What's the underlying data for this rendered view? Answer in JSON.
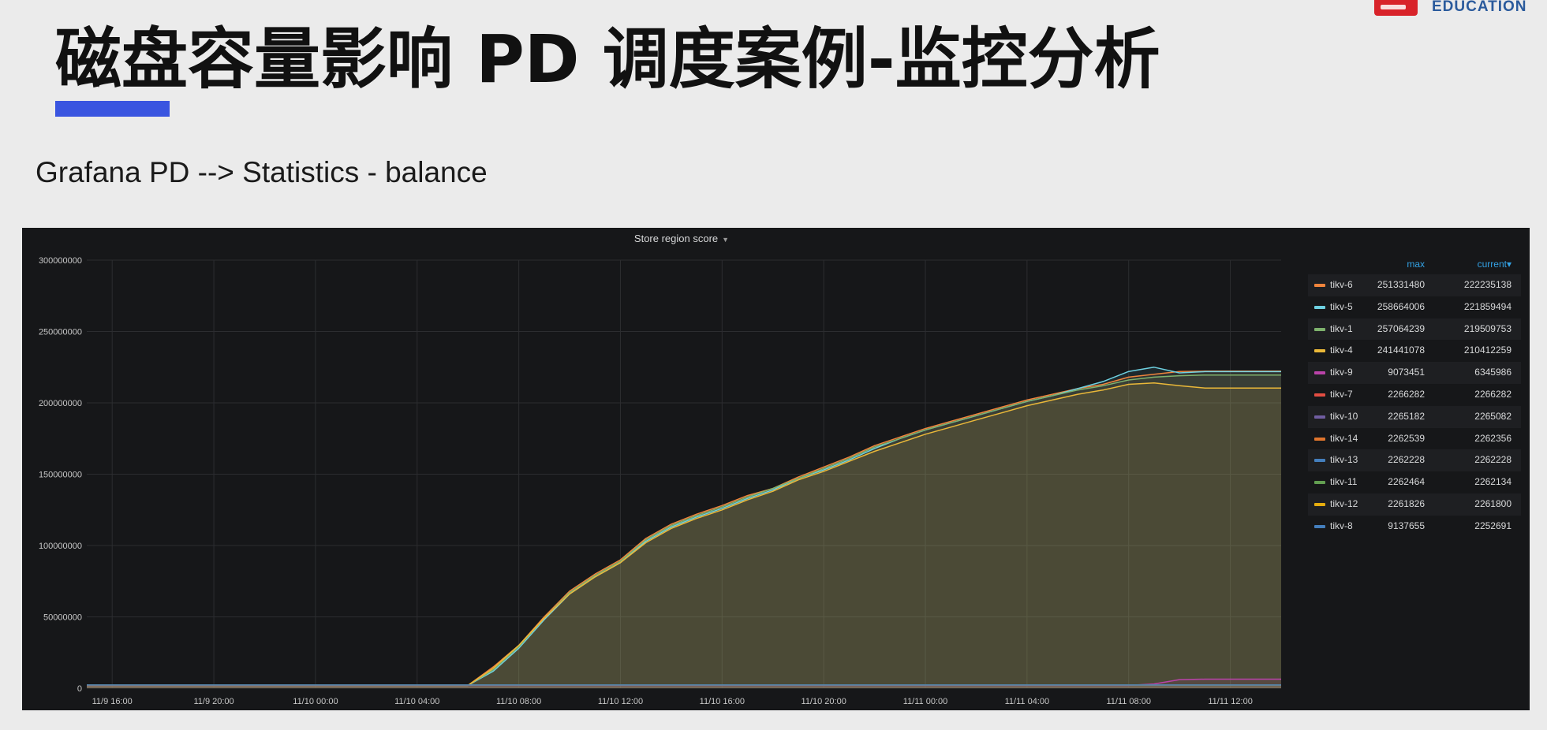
{
  "header": {
    "logo_text": "EDUCATION",
    "title": "磁盘容量影响 PD 调度案例-监控分析",
    "subtitle": "Grafana PD --> Statistics - balance"
  },
  "panel": {
    "title": "Store region score",
    "max_label": "max",
    "current_label": "current▾"
  },
  "chart_data": {
    "type": "line",
    "title": "Store region score",
    "ylim": [
      0,
      300000000
    ],
    "y_ticks": [
      0,
      50000000,
      100000000,
      150000000,
      200000000,
      250000000,
      300000000
    ],
    "y_tick_labels": [
      "0",
      "50000000",
      "100000000",
      "150000000",
      "200000000",
      "250000000",
      "300000000"
    ],
    "x_ticks": [
      "11/9 16:00",
      "11/9 20:00",
      "11/10 00:00",
      "11/10 04:00",
      "11/10 08:00",
      "11/10 12:00",
      "11/10 16:00",
      "11/10 20:00",
      "11/11 00:00",
      "11/11 04:00",
      "11/11 08:00",
      "11/11 12:00"
    ],
    "x_range": [
      "11/9 15:00",
      "11/11 14:00"
    ],
    "grid": true,
    "legend_placement": "right",
    "x": [
      "11/9 15:00",
      "11/10 06:00",
      "11/10 07:00",
      "11/10 08:00",
      "11/10 09:00",
      "11/10 10:00",
      "11/10 11:00",
      "11/10 12:00",
      "11/10 13:00",
      "11/10 14:00",
      "11/10 15:00",
      "11/10 16:00",
      "11/10 17:00",
      "11/10 18:00",
      "11/10 19:00",
      "11/10 20:00",
      "11/10 21:00",
      "11/10 22:00",
      "11/10 23:00",
      "11/11 00:00",
      "11/11 01:00",
      "11/11 02:00",
      "11/11 03:00",
      "11/11 04:00",
      "11/11 05:00",
      "11/11 06:00",
      "11/11 07:00",
      "11/11 08:00",
      "11/11 09:00",
      "11/11 10:00",
      "11/11 11:00",
      "11/11 12:00",
      "11/11 14:00"
    ],
    "series": [
      {
        "name": "tikv-6",
        "color": "#ef843c",
        "max": "251331480",
        "current": "222235138",
        "values": [
          2000000,
          2000000,
          15000000,
          30000000,
          50000000,
          68000000,
          80000000,
          90000000,
          105000000,
          115000000,
          122000000,
          128000000,
          135000000,
          140000000,
          148000000,
          155000000,
          162000000,
          170000000,
          176000000,
          182000000,
          187000000,
          192000000,
          197000000,
          202000000,
          206000000,
          210000000,
          213000000,
          218000000,
          220000000,
          222000000,
          222235138,
          222235138,
          222235138
        ]
      },
      {
        "name": "tikv-5",
        "color": "#6ed0e0",
        "max": "258664006",
        "current": "221859494",
        "values": [
          2000000,
          2000000,
          12000000,
          28000000,
          48000000,
          66000000,
          78000000,
          88000000,
          103000000,
          113000000,
          120000000,
          126000000,
          133000000,
          139000000,
          147000000,
          153000000,
          160000000,
          168000000,
          175000000,
          181000000,
          186000000,
          191000000,
          196000000,
          201000000,
          205000000,
          210000000,
          215000000,
          222000000,
          225000000,
          221000000,
          221859494,
          221859494,
          221859494
        ]
      },
      {
        "name": "tikv-1",
        "color": "#7eb26d",
        "max": "257064239",
        "current": "219509753",
        "values": [
          2000000,
          2000000,
          13000000,
          29000000,
          49000000,
          67000000,
          79000000,
          89000000,
          104000000,
          114000000,
          121000000,
          127000000,
          134000000,
          140000000,
          147000000,
          154000000,
          161000000,
          169000000,
          175000000,
          181000000,
          186000000,
          191000000,
          196000000,
          201000000,
          205000000,
          209000000,
          212000000,
          216000000,
          218000000,
          219000000,
          219509753,
          219509753,
          219509753
        ]
      },
      {
        "name": "tikv-4",
        "color": "#eab839",
        "max": "241441078",
        "current": "210412259",
        "values": [
          2000000,
          2000000,
          14000000,
          30000000,
          49000000,
          66000000,
          78000000,
          88000000,
          102000000,
          112000000,
          119000000,
          125000000,
          132000000,
          138000000,
          146000000,
          152000000,
          159000000,
          166000000,
          172000000,
          178000000,
          183000000,
          188000000,
          193000000,
          198000000,
          202000000,
          206000000,
          209000000,
          213000000,
          214000000,
          212000000,
          210412259,
          210412259,
          210412259
        ]
      },
      {
        "name": "tikv-9",
        "color": "#ba43a9",
        "max": "9073451",
        "current": "6345986",
        "values": [
          2000000,
          2000000,
          2000000,
          2000000,
          2000000,
          2000000,
          2000000,
          2000000,
          2000000,
          2000000,
          2000000,
          2000000,
          2000000,
          2000000,
          2000000,
          2000000,
          2000000,
          2000000,
          2000000,
          2000000,
          2000000,
          2000000,
          2000000,
          2000000,
          2000000,
          2000000,
          2000000,
          2000000,
          3000000,
          6000000,
          6345986,
          6345986,
          6345986
        ]
      },
      {
        "name": "tikv-7",
        "color": "#e24d42",
        "max": "2266282",
        "current": "2266282",
        "values": [
          2266282,
          2266282,
          2266282,
          2266282,
          2266282,
          2266282,
          2266282,
          2266282,
          2266282,
          2266282,
          2266282,
          2266282,
          2266282,
          2266282,
          2266282,
          2266282,
          2266282,
          2266282,
          2266282,
          2266282,
          2266282,
          2266282,
          2266282,
          2266282,
          2266282,
          2266282,
          2266282,
          2266282,
          2266282,
          2266282,
          2266282,
          2266282,
          2266282
        ]
      },
      {
        "name": "tikv-10",
        "color": "#705da0",
        "max": "2265182",
        "current": "2265082",
        "values": [
          2265082,
          2265082,
          2265082,
          2265082,
          2265082,
          2265082,
          2265082,
          2265082,
          2265082,
          2265082,
          2265082,
          2265082,
          2265082,
          2265082,
          2265082,
          2265082,
          2265082,
          2265082,
          2265082,
          2265082,
          2265082,
          2265082,
          2265082,
          2265082,
          2265082,
          2265082,
          2265082,
          2265082,
          2265082,
          2265082,
          2265082,
          2265082,
          2265082
        ]
      },
      {
        "name": "tikv-14",
        "color": "#e0752d",
        "max": "2262539",
        "current": "2262356",
        "values": [
          2262356,
          2262356,
          2262356,
          2262356,
          2262356,
          2262356,
          2262356,
          2262356,
          2262356,
          2262356,
          2262356,
          2262356,
          2262356,
          2262356,
          2262356,
          2262356,
          2262356,
          2262356,
          2262356,
          2262356,
          2262356,
          2262356,
          2262356,
          2262356,
          2262356,
          2262356,
          2262356,
          2262356,
          2262356,
          2262356,
          2262356,
          2262356,
          2262356
        ]
      },
      {
        "name": "tikv-13",
        "color": "#447ebc",
        "max": "2262228",
        "current": "2262228",
        "values": [
          2262228,
          2262228,
          2262228,
          2262228,
          2262228,
          2262228,
          2262228,
          2262228,
          2262228,
          2262228,
          2262228,
          2262228,
          2262228,
          2262228,
          2262228,
          2262228,
          2262228,
          2262228,
          2262228,
          2262228,
          2262228,
          2262228,
          2262228,
          2262228,
          2262228,
          2262228,
          2262228,
          2262228,
          2262228,
          2262228,
          2262228,
          2262228,
          2262228
        ]
      },
      {
        "name": "tikv-11",
        "color": "#629e51",
        "max": "2262464",
        "current": "2262134",
        "values": [
          2262134,
          2262134,
          2262134,
          2262134,
          2262134,
          2262134,
          2262134,
          2262134,
          2262134,
          2262134,
          2262134,
          2262134,
          2262134,
          2262134,
          2262134,
          2262134,
          2262134,
          2262134,
          2262134,
          2262134,
          2262134,
          2262134,
          2262134,
          2262134,
          2262134,
          2262134,
          2262134,
          2262134,
          2262134,
          2262134,
          2262134,
          2262134,
          2262134
        ]
      },
      {
        "name": "tikv-12",
        "color": "#e5ac0e",
        "max": "2261826",
        "current": "2261800",
        "values": [
          2261800,
          2261800,
          2261800,
          2261800,
          2261800,
          2261800,
          2261800,
          2261800,
          2261800,
          2261800,
          2261800,
          2261800,
          2261800,
          2261800,
          2261800,
          2261800,
          2261800,
          2261800,
          2261800,
          2261800,
          2261800,
          2261800,
          2261800,
          2261800,
          2261800,
          2261800,
          2261800,
          2261800,
          2261800,
          2261800,
          2261800,
          2261800,
          2261800
        ]
      },
      {
        "name": "tikv-8",
        "color": "#447ebc",
        "max": "9137655",
        "current": "2252691",
        "values": [
          2252691,
          2252691,
          2252691,
          2252691,
          2252691,
          2252691,
          2252691,
          2252691,
          2252691,
          2252691,
          2252691,
          2252691,
          2252691,
          2252691,
          2252691,
          2252691,
          2252691,
          2252691,
          2252691,
          2252691,
          2252691,
          2252691,
          2252691,
          2252691,
          2252691,
          2252691,
          2252691,
          2252691,
          2252691,
          2252691,
          2252691,
          2252691,
          2252691
        ]
      }
    ]
  }
}
